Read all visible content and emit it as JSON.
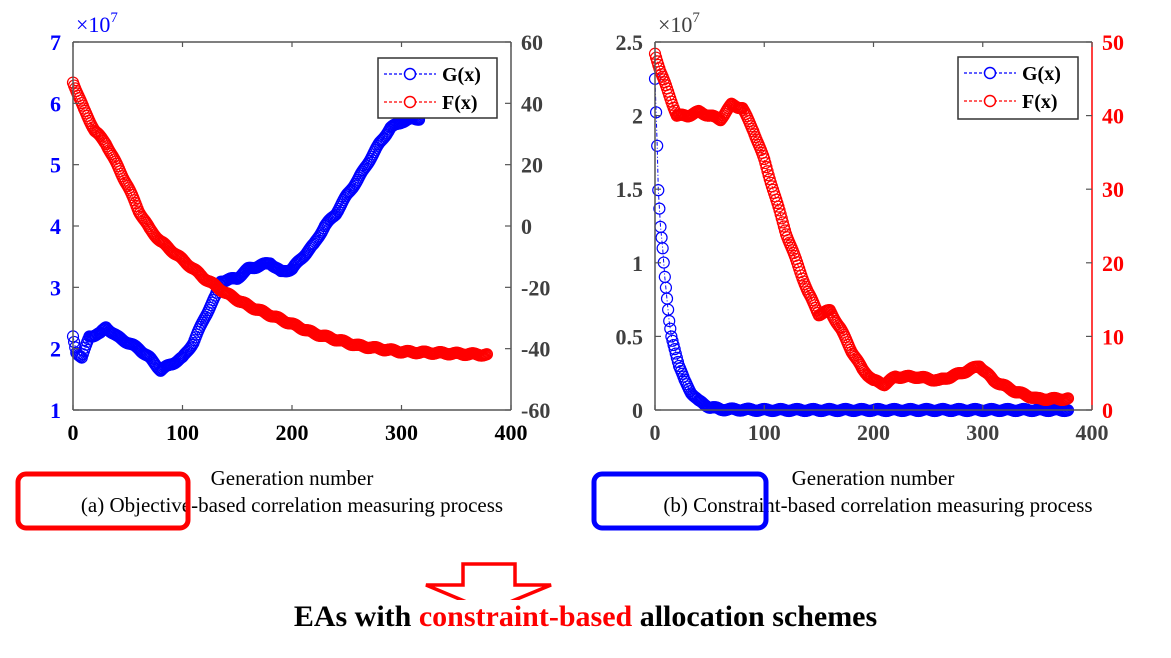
{
  "chart_data": [
    {
      "type": "line",
      "id": "left",
      "title": "",
      "caption": "(a) Objective-based correlation  measuring process",
      "xlabel": "Generation number",
      "xlim": [
        0,
        400
      ],
      "xticks": [
        "0",
        "100",
        "200",
        "300",
        "400"
      ],
      "yleft": {
        "lim": [
          1,
          7
        ],
        "ticks": [
          "1",
          "2",
          "3",
          "4",
          "5",
          "6",
          "7"
        ],
        "exponent": "×10",
        "exponent_power": "7",
        "color": "#0000ff"
      },
      "yright": {
        "lim": [
          -60,
          60
        ],
        "ticks": [
          "-60",
          "-40",
          "-20",
          "0",
          "20",
          "40",
          "60"
        ],
        "color": "#404040"
      },
      "legend": {
        "placement": "top-right",
        "entries": [
          "G(x)",
          "F(x)"
        ]
      },
      "series": [
        {
          "name": "G(x)",
          "axis": "left",
          "color": "#0000ff",
          "marker": "circle",
          "line": "dash-dot",
          "x": [
            0,
            3,
            8,
            15,
            25,
            30,
            40,
            50,
            60,
            70,
            80,
            90,
            100,
            110,
            120,
            130,
            135,
            150,
            160,
            170,
            180,
            190,
            200,
            210,
            220,
            230,
            240,
            250,
            260,
            270,
            280,
            290,
            300,
            310,
            316
          ],
          "y": [
            2.2,
            1.95,
            1.85,
            2.2,
            2.25,
            2.35,
            2.2,
            2.1,
            2.0,
            1.85,
            1.65,
            1.75,
            1.85,
            2.1,
            2.5,
            2.85,
            3.1,
            3.15,
            3.3,
            3.35,
            3.4,
            3.25,
            3.3,
            3.5,
            3.7,
            4.0,
            4.2,
            4.5,
            4.75,
            5.05,
            5.35,
            5.6,
            5.7,
            5.75,
            5.75
          ]
        },
        {
          "name": "F(x)",
          "axis": "right",
          "color": "#ff0000",
          "marker": "circle",
          "line": "dash-dot",
          "x": [
            0,
            10,
            20,
            30,
            40,
            50,
            60,
            70,
            80,
            100,
            120,
            140,
            160,
            180,
            200,
            220,
            240,
            260,
            280,
            300,
            340,
            378
          ],
          "y": [
            47,
            38,
            31,
            27,
            20,
            13,
            5,
            -1,
            -5,
            -11,
            -17,
            -22,
            -26,
            -29,
            -32,
            -35,
            -37,
            -39,
            -40,
            -41,
            -41.5,
            -42
          ]
        }
      ]
    },
    {
      "type": "line",
      "id": "right",
      "title": "",
      "caption": "(b) Constraint-based correlation  measuring process",
      "xlabel": "Generation number",
      "xlim": [
        0,
        400
      ],
      "xticks": [
        "0",
        "100",
        "200",
        "300",
        "400"
      ],
      "yleft": {
        "lim": [
          0,
          2.5
        ],
        "ticks": [
          "0",
          "0.5",
          "1",
          "1.5",
          "2",
          "2.5"
        ],
        "exponent": "×10",
        "exponent_power": "7",
        "color": "#404040"
      },
      "yright": {
        "lim": [
          0,
          50
        ],
        "ticks": [
          "0",
          "10",
          "20",
          "30",
          "40",
          "50"
        ],
        "color": "#ff0000"
      },
      "legend": {
        "placement": "top-right",
        "entries": [
          "G(x)",
          "F(x)"
        ]
      },
      "series": [
        {
          "name": "G(x)",
          "axis": "left",
          "color": "#0000ff",
          "marker": "circle",
          "line": "dash-dot",
          "x": [
            0,
            2,
            3,
            5,
            7,
            9,
            11,
            13,
            15,
            18,
            22,
            27,
            33,
            40,
            50,
            60,
            100,
            200,
            300,
            378
          ],
          "y": [
            2.25,
            1.8,
            1.5,
            1.25,
            1.1,
            0.9,
            0.75,
            0.6,
            0.5,
            0.42,
            0.3,
            0.2,
            0.12,
            0.06,
            0.02,
            0.005,
            0,
            0,
            0,
            0
          ]
        },
        {
          "name": "F(x)",
          "axis": "right",
          "color": "#ff0000",
          "marker": "circle",
          "line": "dash-dot",
          "x": [
            0,
            5,
            10,
            15,
            20,
            30,
            40,
            50,
            60,
            70,
            80,
            90,
            100,
            110,
            120,
            130,
            140,
            150,
            160,
            170,
            180,
            190,
            200,
            210,
            220,
            240,
            260,
            280,
            297,
            310,
            330,
            350,
            378
          ],
          "y": [
            48.5,
            46,
            44,
            42,
            40,
            40,
            40.5,
            40,
            39.5,
            41.5,
            41,
            38,
            34,
            29,
            24,
            20,
            16,
            13,
            13.5,
            11,
            8,
            5.5,
            4,
            3.5,
            4.5,
            4.5,
            4,
            5,
            6,
            4,
            2.5,
            1.5,
            1.5
          ]
        }
      ]
    }
  ],
  "annotations": {
    "left_box_color": "#ff0000",
    "right_box_color": "#0000ff",
    "arrow_color": "#ff0000",
    "conclusion": {
      "prefix": "EAs with ",
      "highlight": "constraint-based",
      "suffix": " allocation schemes",
      "highlight_color": "#ff0000"
    }
  }
}
